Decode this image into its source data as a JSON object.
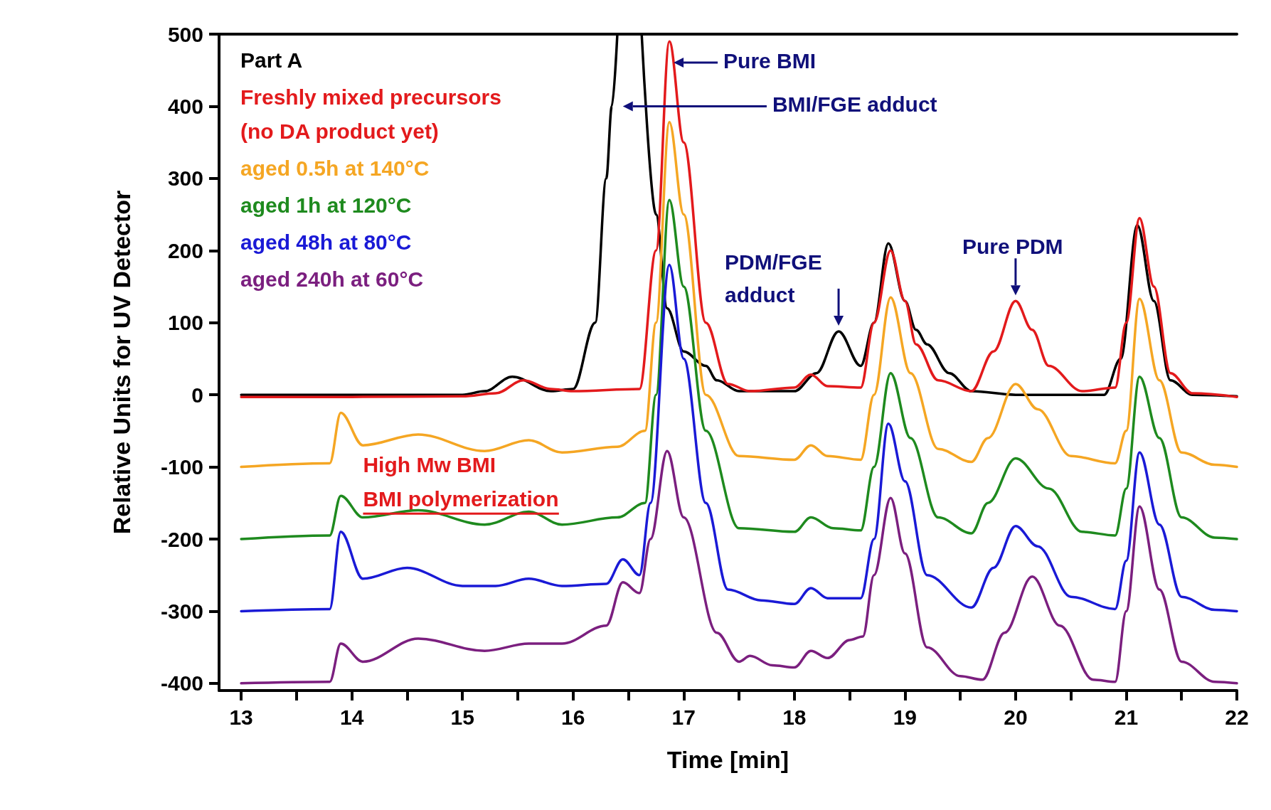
{
  "chart_data": {
    "type": "line",
    "xlabel": "Time [min]",
    "ylabel": "Relative Units for UV Detector",
    "xlim": [
      12.8,
      22
    ],
    "ylim": [
      -410,
      500
    ],
    "xticks": [
      13,
      {
        "value": 13.5,
        "label": null
      },
      14,
      {
        "value": 14.5,
        "label": null
      },
      15,
      {
        "value": 15.5,
        "label": null
      },
      16,
      {
        "value": 16.5,
        "label": null
      },
      17,
      {
        "value": 17.5,
        "label": null
      },
      18,
      {
        "value": 18.5,
        "label": null
      },
      19,
      {
        "value": 19.5,
        "label": null
      },
      20,
      {
        "value": 20.5,
        "label": null
      },
      21,
      {
        "value": 21.5,
        "label": null
      },
      22
    ],
    "yticks": [
      -400,
      -300,
      -200,
      -100,
      0,
      100,
      200,
      300,
      400,
      500
    ],
    "grid": false,
    "legend": "top left",
    "marker": "none",
    "line_style": "solid",
    "series": [
      {
        "name": "Part A",
        "color": "#000000",
        "x": [
          13,
          14,
          15,
          15.2,
          15.45,
          15.8,
          16.0,
          16.2,
          16.3,
          16.35,
          16.4,
          16.5,
          16.62,
          16.75,
          16.85,
          17.0,
          17.2,
          17.3,
          17.5,
          18.0,
          18.2,
          18.4,
          18.6,
          18.72,
          18.85,
          19.0,
          19.1,
          19.2,
          19.4,
          19.6,
          20.0,
          20.8,
          20.95,
          21.1,
          21.25,
          21.4,
          21.6,
          22
        ],
        "values": [
          0,
          0,
          0,
          5,
          25,
          5,
          8,
          100,
          300,
          400,
          500,
          null,
          500,
          250,
          120,
          60,
          40,
          20,
          5,
          5,
          30,
          88,
          40,
          100,
          210,
          130,
          90,
          70,
          30,
          5,
          0,
          0,
          50,
          235,
          130,
          20,
          0,
          -2
        ]
      },
      {
        "name": "Freshly mixed precursors\n(no DA product yet)",
        "color": "#e31a1c",
        "x": [
          13,
          14,
          15,
          15.3,
          15.55,
          15.8,
          16.0,
          16.6,
          16.75,
          16.87,
          17.0,
          17.2,
          17.4,
          17.6,
          18.0,
          18.15,
          18.3,
          18.6,
          18.72,
          18.87,
          19.0,
          19.1,
          19.3,
          19.6,
          19.8,
          20.0,
          20.15,
          20.3,
          20.6,
          20.9,
          21.0,
          21.12,
          21.25,
          21.4,
          21.6,
          22
        ],
        "values": [
          -3,
          -3,
          -2,
          2,
          20,
          8,
          5,
          8,
          200,
          490,
          350,
          100,
          15,
          5,
          10,
          28,
          12,
          10,
          100,
          200,
          130,
          70,
          20,
          5,
          60,
          130,
          90,
          40,
          5,
          10,
          100,
          245,
          150,
          30,
          2,
          -3
        ]
      },
      {
        "name": "aged 0.5h at 140°C",
        "color": "#f5a623",
        "x": [
          13,
          13.8,
          13.9,
          14.1,
          14.6,
          15.2,
          15.6,
          15.9,
          16.4,
          16.65,
          16.75,
          16.87,
          17.0,
          17.2,
          17.5,
          18.0,
          18.15,
          18.3,
          18.6,
          18.72,
          18.87,
          19.05,
          19.3,
          19.6,
          19.75,
          20.0,
          20.2,
          20.5,
          20.9,
          21.0,
          21.12,
          21.3,
          21.5,
          21.8,
          22
        ],
        "values": [
          -100,
          -95,
          -25,
          -70,
          -55,
          -78,
          -63,
          -80,
          -72,
          -50,
          100,
          378,
          250,
          0,
          -85,
          -90,
          -70,
          -85,
          -90,
          0,
          135,
          30,
          -75,
          -93,
          -60,
          15,
          -20,
          -85,
          -95,
          -50,
          133,
          20,
          -80,
          -97,
          -100
        ]
      },
      {
        "name": "aged 1h at 120°C",
        "color": "#1e8a1e",
        "x": [
          13,
          13.8,
          13.9,
          14.1,
          14.6,
          15.2,
          15.6,
          15.9,
          16.4,
          16.65,
          16.75,
          16.87,
          17.0,
          17.2,
          17.5,
          18.0,
          18.15,
          18.35,
          18.6,
          18.72,
          18.87,
          19.05,
          19.3,
          19.6,
          19.75,
          20.0,
          20.3,
          20.6,
          20.9,
          21.0,
          21.12,
          21.3,
          21.5,
          21.8,
          22
        ],
        "values": [
          -200,
          -195,
          -140,
          -170,
          -160,
          -180,
          -162,
          -180,
          -170,
          -150,
          0,
          270,
          150,
          -50,
          -185,
          -190,
          -170,
          -185,
          -188,
          -100,
          30,
          -60,
          -170,
          -192,
          -150,
          -88,
          -130,
          -190,
          -195,
          -130,
          25,
          -60,
          -170,
          -198,
          -200
        ]
      },
      {
        "name": "aged 48h at 80°C",
        "color": "#1a1ad6",
        "x": [
          13,
          13.8,
          13.9,
          14.1,
          14.5,
          15.0,
          15.3,
          15.6,
          15.9,
          16.3,
          16.45,
          16.6,
          16.7,
          16.87,
          17.0,
          17.2,
          17.4,
          17.7,
          18.0,
          18.15,
          18.3,
          18.6,
          18.72,
          18.85,
          19.0,
          19.2,
          19.6,
          19.8,
          20.0,
          20.2,
          20.5,
          20.9,
          21.0,
          21.12,
          21.3,
          21.5,
          21.8,
          22
        ],
        "values": [
          -300,
          -297,
          -190,
          -255,
          -240,
          -265,
          -265,
          -255,
          -265,
          -262,
          -228,
          -250,
          -150,
          180,
          50,
          -150,
          -270,
          -285,
          -290,
          -268,
          -282,
          -282,
          -200,
          -40,
          -120,
          -250,
          -295,
          -240,
          -182,
          -210,
          -280,
          -297,
          -230,
          -80,
          -180,
          -280,
          -298,
          -300
        ]
      },
      {
        "name": "aged 240h at 60°C",
        "color": "#7b1f7f",
        "x": [
          13,
          13.8,
          13.9,
          14.1,
          14.6,
          15.2,
          15.6,
          15.9,
          16.3,
          16.45,
          16.6,
          16.7,
          16.85,
          17.0,
          17.3,
          17.5,
          17.6,
          17.8,
          18.0,
          18.15,
          18.3,
          18.5,
          18.62,
          18.72,
          18.87,
          19.0,
          19.2,
          19.5,
          19.7,
          19.9,
          20.15,
          20.4,
          20.7,
          20.9,
          21.0,
          21.12,
          21.3,
          21.5,
          21.8,
          22
        ],
        "values": [
          -400,
          -398,
          -345,
          -370,
          -338,
          -355,
          -345,
          -345,
          -320,
          -260,
          -275,
          -200,
          -78,
          -170,
          -330,
          -370,
          -362,
          -375,
          -378,
          -355,
          -365,
          -340,
          -335,
          -250,
          -143,
          -220,
          -350,
          -390,
          -395,
          -330,
          -252,
          -320,
          -395,
          -398,
          -300,
          -155,
          -270,
          -370,
          -398,
          -400
        ]
      }
    ],
    "annotations": [
      {
        "text": "Pure BMI",
        "x": 16.87,
        "y": 490
      },
      "BMI/FGE adduct",
      {
        "text": "PDM/FGE\nadduct",
        "x": 18.4,
        "y": 88
      },
      {
        "text": "Pure PDM",
        "x": 20.0,
        "y": 130
      },
      "High Mw BMI",
      "BMI polymerization"
    ]
  }
}
